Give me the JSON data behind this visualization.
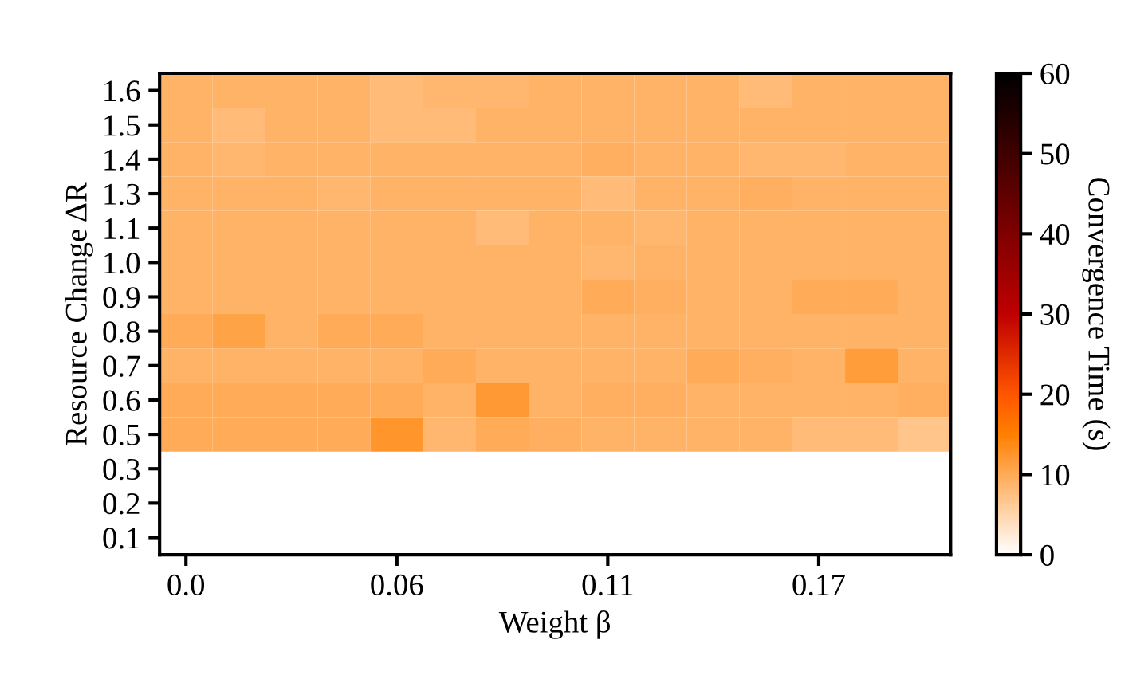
{
  "chart_data": {
    "type": "heatmap",
    "xlabel": "Weight β",
    "ylabel": "Resource Change ΔR",
    "clabel": "Convergence Time (s)",
    "categories": [
      "0.0",
      null,
      null,
      null,
      "0.06",
      null,
      null,
      null,
      "0.11",
      null,
      null,
      null,
      "0.17",
      null,
      null
    ],
    "y_categories": [
      "1.6",
      "1.5",
      "1.4",
      "1.3",
      "1.1",
      "1.0",
      "0.9",
      "0.8",
      "0.7",
      "0.6",
      "0.5",
      "0.3",
      "0.2",
      "0.1"
    ],
    "cells": [
      [
        9,
        9,
        9,
        9,
        8,
        8.5,
        8.5,
        9,
        9,
        9,
        9,
        8,
        9,
        9,
        9
      ],
      [
        9,
        8,
        9,
        9,
        8,
        8,
        9,
        9,
        9,
        9,
        9,
        9,
        9,
        9,
        9
      ],
      [
        9,
        8.5,
        9,
        9,
        9,
        9,
        9,
        9,
        9.5,
        9,
        9,
        8.5,
        8.5,
        9,
        9
      ],
      [
        9,
        9,
        9,
        8.5,
        9,
        9,
        9,
        9,
        8,
        9,
        9,
        9.5,
        9,
        9,
        9
      ],
      [
        9,
        9,
        9,
        9,
        9,
        9,
        8,
        9,
        9,
        8.5,
        9,
        9,
        9,
        9,
        9
      ],
      [
        9,
        9,
        9,
        9,
        9,
        9,
        9,
        9,
        8.5,
        9,
        9,
        9,
        9,
        9,
        9
      ],
      [
        9,
        9,
        9,
        9,
        9,
        9,
        9,
        9,
        10,
        9.5,
        9,
        9,
        10,
        10,
        9
      ],
      [
        10,
        11,
        9,
        10,
        10,
        9,
        9,
        9,
        9,
        9,
        9,
        9,
        9,
        9,
        9
      ],
      [
        9,
        9,
        9,
        9,
        9,
        10,
        9,
        9,
        9,
        9,
        10,
        9.5,
        9,
        11.5,
        9
      ],
      [
        10,
        10,
        10,
        10,
        10,
        9,
        12,
        9,
        9.5,
        9.5,
        9,
        9,
        9,
        9,
        9.5
      ],
      [
        10,
        10,
        10,
        10,
        12.5,
        8.5,
        10,
        9.5,
        9,
        9,
        9,
        9,
        8,
        8,
        7
      ],
      [
        null,
        null,
        null,
        null,
        null,
        null,
        null,
        null,
        null,
        null,
        null,
        null,
        null,
        null,
        null
      ],
      [
        null,
        null,
        null,
        null,
        null,
        null,
        null,
        null,
        null,
        null,
        null,
        null,
        null,
        null,
        null
      ],
      [
        null,
        null,
        null,
        null,
        null,
        null,
        null,
        null,
        null,
        null,
        null,
        null,
        null,
        null,
        null
      ]
    ],
    "clim": [
      0,
      60
    ],
    "cticks": [
      0,
      10,
      20,
      30,
      40,
      50,
      60
    ]
  }
}
